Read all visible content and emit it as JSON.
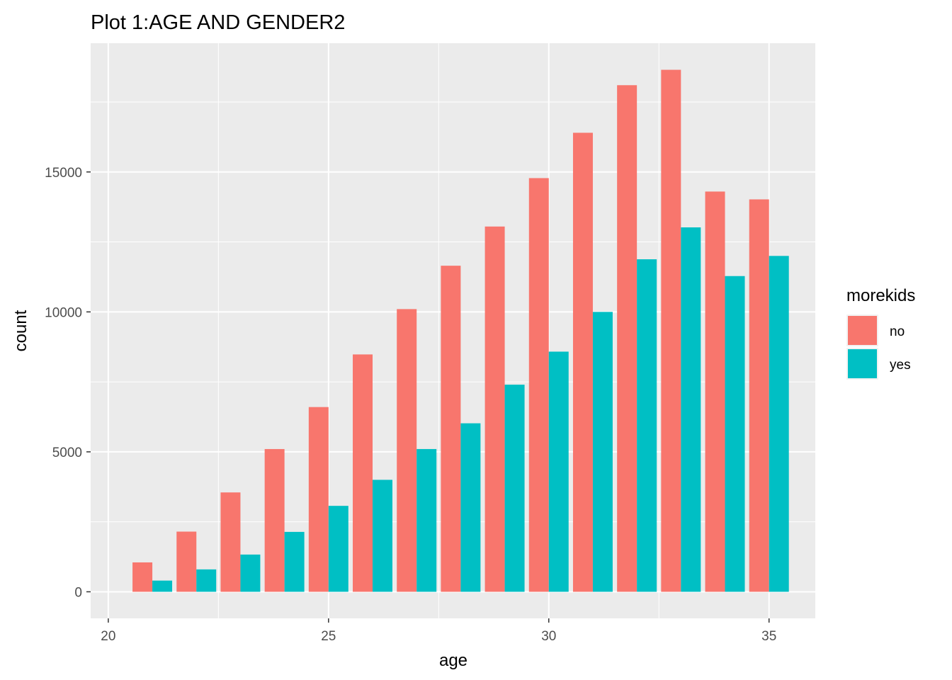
{
  "chart_data": {
    "type": "bar",
    "title": "Plot 1:AGE AND GENDER2",
    "xlabel": "age",
    "ylabel": "count",
    "x": [
      21,
      22,
      23,
      24,
      25,
      26,
      27,
      28,
      29,
      30,
      31,
      32,
      33,
      34,
      35
    ],
    "series": [
      {
        "name": "no",
        "color": "#F8766D",
        "values": [
          1050,
          2150,
          3550,
          5100,
          6600,
          8480,
          10100,
          11650,
          13050,
          14780,
          16400,
          18100,
          18650,
          14300,
          14020
        ]
      },
      {
        "name": "yes",
        "color": "#00BFC4",
        "values": [
          400,
          800,
          1330,
          2140,
          3070,
          4000,
          5100,
          6020,
          7400,
          8580,
          10000,
          11880,
          13020,
          11280,
          12000
        ]
      }
    ],
    "xlim": [
      19.6,
      36.05
    ],
    "ylim": [
      -950,
      19600
    ],
    "x_ticks": [
      20,
      25,
      30,
      35
    ],
    "y_ticks": [
      0,
      5000,
      10000,
      15000
    ],
    "x_minor_ticks": [
      22.5,
      27.5,
      32.5
    ],
    "y_minor_ticks": [
      2500,
      7500,
      12500,
      17500
    ],
    "grid": true,
    "panel_color": "#EBEBEB",
    "legend": {
      "title": "morekids",
      "position": "right"
    }
  }
}
